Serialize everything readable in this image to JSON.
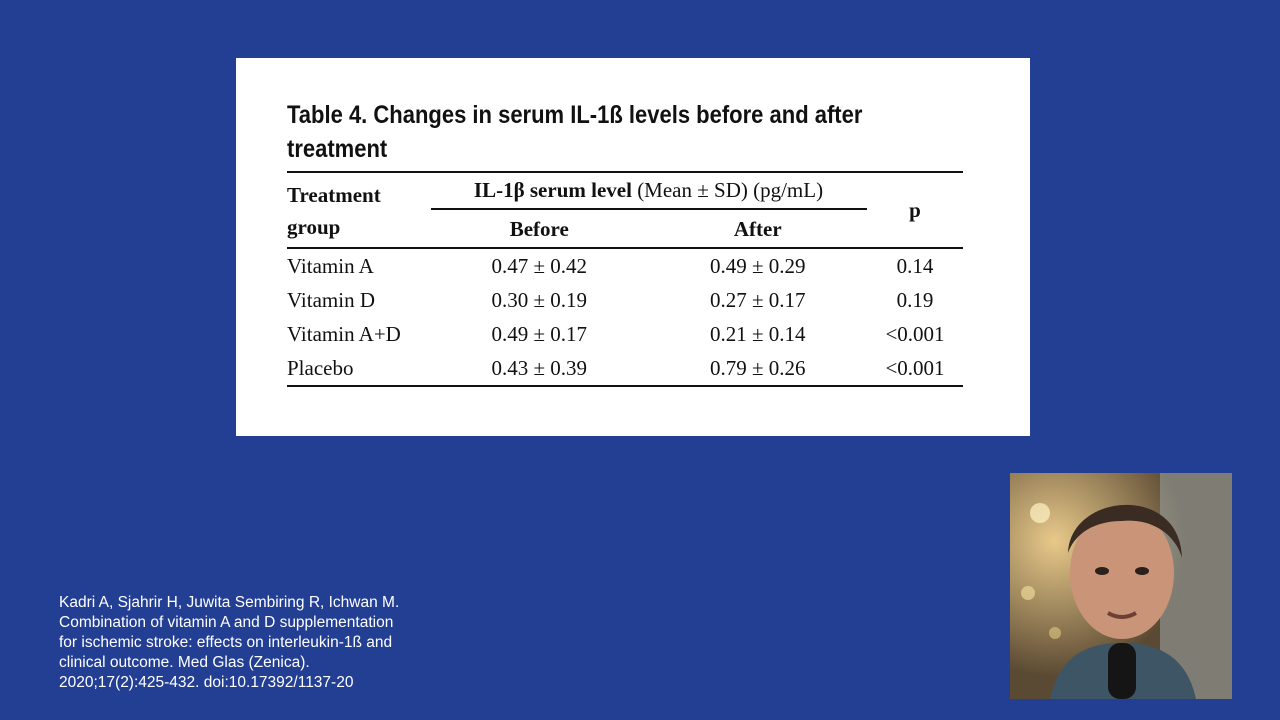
{
  "table": {
    "title": "Table 4. Changes in serum IL-1ß levels before and after treatment",
    "group_header_line1": "Treatment",
    "group_header_line2": "group",
    "span_header_bold": "IL-1β serum level",
    "span_header_unit": "(Mean ± SD) (pg/mL)",
    "sub_headers": [
      "Before",
      "After"
    ],
    "p_header": "p",
    "rows": [
      {
        "group": "Vitamin A",
        "before": "0.47 ± 0.42",
        "after": "0.49 ± 0.29",
        "p": "0.14"
      },
      {
        "group": "Vitamin D",
        "before": "0.30 ± 0.19",
        "after": "0.27 ± 0.17",
        "p": "0.19"
      },
      {
        "group": "Vitamin A+D",
        "before": "0.49 ± 0.17",
        "after": "0.21 ± 0.14",
        "p": "<0.001"
      },
      {
        "group": "Placebo",
        "before": "0.43 ± 0.39",
        "after": "0.79 ± 0.26",
        "p": "<0.001"
      }
    ]
  },
  "citation": {
    "lines": [
      "Kadri A, Sjahrir H, Juwita Sembiring R, Ichwan M.",
      "Combination of vitamin A and D supplementation",
      "for ischemic stroke: effects on interleukin-1ß and",
      "clinical outcome. Med Glas (Zenica).",
      "2020;17(2):425-432. doi:10.17392/1137-20"
    ]
  },
  "colors": {
    "background": "#233f94",
    "card": "#ffffff",
    "text": "#111111",
    "citation_text": "#ffffff"
  }
}
